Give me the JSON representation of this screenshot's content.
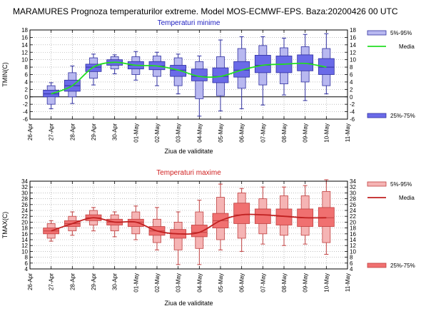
{
  "title": "MARAMURES  Prognoza temperaturilor extreme.  Model MOS-ECMWF-EPS. Baza:20200426 00 UTC",
  "chart_data": [
    {
      "type": "boxplot",
      "title": "Temperaturi minime",
      "ylabel": "TMIN(C)",
      "xlabel": "Ziua de validitate",
      "ylim": [
        -6,
        18
      ],
      "yticks": [
        -6,
        -4,
        -2,
        0,
        2,
        4,
        6,
        8,
        10,
        12,
        14,
        16,
        18
      ],
      "categories": [
        "26-Apr",
        "27-Apr",
        "28-Apr",
        "29-Apr",
        "30-Apr",
        "01-May",
        "02-May",
        "03-May",
        "04-May",
        "05-May",
        "06-May",
        "07-May",
        "08-May",
        "09-May",
        "10-May",
        "11-May"
      ],
      "legend": {
        "p5_95": "5%-95%",
        "median": "Media",
        "p25_75": "25%-75%"
      },
      "colors": {
        "outer": "#b8b8f0",
        "inner": "#6a6ae8",
        "edge": "#3030a0",
        "median": "#22dd22"
      },
      "boxes": [
        {
          "date": "27-Apr",
          "min": -3.2,
          "p5": -2.0,
          "p25": 0.0,
          "med": 0.8,
          "p75": 1.8,
          "p95": 3.0,
          "max": 3.8
        },
        {
          "date": "28-Apr",
          "min": -1.8,
          "p5": 0.0,
          "p25": 1.5,
          "med": 3.0,
          "p75": 4.5,
          "p95": 6.5,
          "max": 8.3
        },
        {
          "date": "29-Apr",
          "min": 3.2,
          "p5": 5.0,
          "p25": 6.8,
          "med": 8.0,
          "p75": 8.8,
          "p95": 10.5,
          "max": 11.5
        },
        {
          "date": "30-Apr",
          "min": 6.2,
          "p5": 7.5,
          "p25": 8.5,
          "med": 9.3,
          "p75": 10.0,
          "p95": 10.8,
          "max": 11.3
        },
        {
          "date": "01-May",
          "min": 4.5,
          "p5": 6.0,
          "p25": 7.5,
          "med": 8.5,
          "p75": 9.5,
          "p95": 10.8,
          "max": 12.2
        },
        {
          "date": "02-May",
          "min": 3.0,
          "p5": 5.5,
          "p25": 7.3,
          "med": 8.3,
          "p75": 9.5,
          "p95": 11.0,
          "max": 12.0
        },
        {
          "date": "03-May",
          "min": 0.8,
          "p5": 3.0,
          "p25": 5.5,
          "med": 7.2,
          "p75": 8.5,
          "p95": 10.5,
          "max": 11.5
        },
        {
          "date": "04-May",
          "min": -5.2,
          "p5": -0.5,
          "p25": 4.3,
          "med": 5.5,
          "p75": 7.5,
          "p95": 9.5,
          "max": 11.0
        },
        {
          "date": "05-May",
          "min": -3.8,
          "p5": 0.3,
          "p25": 3.8,
          "med": 5.5,
          "p75": 7.8,
          "p95": 10.8,
          "max": 15.3
        },
        {
          "date": "06-May",
          "min": -3.2,
          "p5": 2.3,
          "p25": 5.3,
          "med": 7.2,
          "p75": 9.5,
          "p95": 13.0,
          "max": 16.2
        },
        {
          "date": "07-May",
          "min": -2.2,
          "p5": 3.2,
          "p25": 6.5,
          "med": 8.5,
          "p75": 11.2,
          "p95": 13.8,
          "max": 16.2
        },
        {
          "date": "08-May",
          "min": 0.5,
          "p5": 3.5,
          "p25": 6.5,
          "med": 8.8,
          "p75": 11.0,
          "p95": 13.2,
          "max": 15.8
        },
        {
          "date": "09-May",
          "min": -1.0,
          "p5": 4.0,
          "p25": 7.0,
          "med": 9.0,
          "p75": 11.3,
          "p95": 13.5,
          "max": 16.8
        },
        {
          "date": "10-May",
          "min": 0.8,
          "p5": 3.0,
          "p25": 6.0,
          "med": 8.0,
          "p75": 10.3,
          "p95": 13.0,
          "max": 17.0
        }
      ]
    },
    {
      "type": "boxplot",
      "title": "Temperaturi maxime",
      "ylabel": "TMAX(C)",
      "xlabel": "Ziua de validitate",
      "ylim": [
        4,
        34
      ],
      "yticks": [
        4,
        6,
        8,
        10,
        12,
        14,
        16,
        18,
        20,
        22,
        24,
        26,
        28,
        30,
        32,
        34
      ],
      "categories": [
        "26-Apr",
        "27-Apr",
        "28-Apr",
        "29-Apr",
        "30-Apr",
        "01-May",
        "02-May",
        "03-May",
        "04-May",
        "05-May",
        "06-May",
        "07-May",
        "08-May",
        "09-May",
        "10-May",
        "11-May"
      ],
      "legend": {
        "p5_95": "5%-95%",
        "median": "Media",
        "p25_75": "25%-75%"
      },
      "colors": {
        "outer": "#f5b4b4",
        "inner": "#f07070",
        "edge": "#c04040",
        "median": "#c02020"
      },
      "boxes": [
        {
          "date": "27-Apr",
          "min": 13.5,
          "p5": 14.5,
          "p25": 16.0,
          "med": 17.0,
          "p75": 18.0,
          "p95": 19.5,
          "max": 20.5
        },
        {
          "date": "28-Apr",
          "min": 15.5,
          "p5": 17.0,
          "p25": 18.5,
          "med": 19.5,
          "p75": 20.5,
          "p95": 22.0,
          "max": 23.5
        },
        {
          "date": "29-Apr",
          "min": 17.0,
          "p5": 19.0,
          "p25": 20.5,
          "med": 21.5,
          "p75": 22.5,
          "p95": 24.0,
          "max": 25.0
        },
        {
          "date": "30-Apr",
          "min": 15.0,
          "p5": 17.0,
          "p25": 19.0,
          "med": 20.0,
          "p75": 21.0,
          "p95": 22.5,
          "max": 23.5
        },
        {
          "date": "01-May",
          "min": 14.0,
          "p5": 16.0,
          "p25": 18.5,
          "med": 20.0,
          "p75": 21.0,
          "p95": 23.5,
          "max": 25.5
        },
        {
          "date": "02-May",
          "min": 10.5,
          "p5": 13.0,
          "p25": 15.5,
          "med": 17.0,
          "p75": 18.5,
          "p95": 21.0,
          "max": 25.0
        },
        {
          "date": "03-May",
          "min": 5.5,
          "p5": 10.5,
          "p25": 14.5,
          "med": 16.0,
          "p75": 17.5,
          "p95": 20.0,
          "max": 23.5
        },
        {
          "date": "04-May",
          "min": 5.5,
          "p5": 11.0,
          "p25": 15.0,
          "med": 16.5,
          "p75": 19.0,
          "p95": 23.5,
          "max": 27.5
        },
        {
          "date": "05-May",
          "min": 10.5,
          "p5": 14.0,
          "p25": 18.0,
          "med": 20.5,
          "p75": 23.0,
          "p95": 28.5,
          "max": 33.0
        },
        {
          "date": "06-May",
          "min": 10.0,
          "p5": 14.5,
          "p25": 19.5,
          "med": 22.5,
          "p75": 26.5,
          "p95": 30.0,
          "max": 31.5
        },
        {
          "date": "07-May",
          "min": 12.5,
          "p5": 16.0,
          "p25": 19.5,
          "med": 22.5,
          "p75": 24.5,
          "p95": 28.0,
          "max": 32.0
        },
        {
          "date": "08-May",
          "min": 12.0,
          "p5": 15.5,
          "p25": 19.0,
          "med": 22.0,
          "p75": 24.5,
          "p95": 29.0,
          "max": 32.0
        },
        {
          "date": "09-May",
          "min": 12.5,
          "p5": 15.5,
          "p25": 18.5,
          "med": 21.5,
          "p75": 24.5,
          "p95": 29.0,
          "max": 32.5
        },
        {
          "date": "10-May",
          "min": 9.0,
          "p5": 13.0,
          "p25": 18.5,
          "med": 21.5,
          "p75": 25.0,
          "p95": 30.5,
          "max": 34.5
        }
      ]
    }
  ]
}
